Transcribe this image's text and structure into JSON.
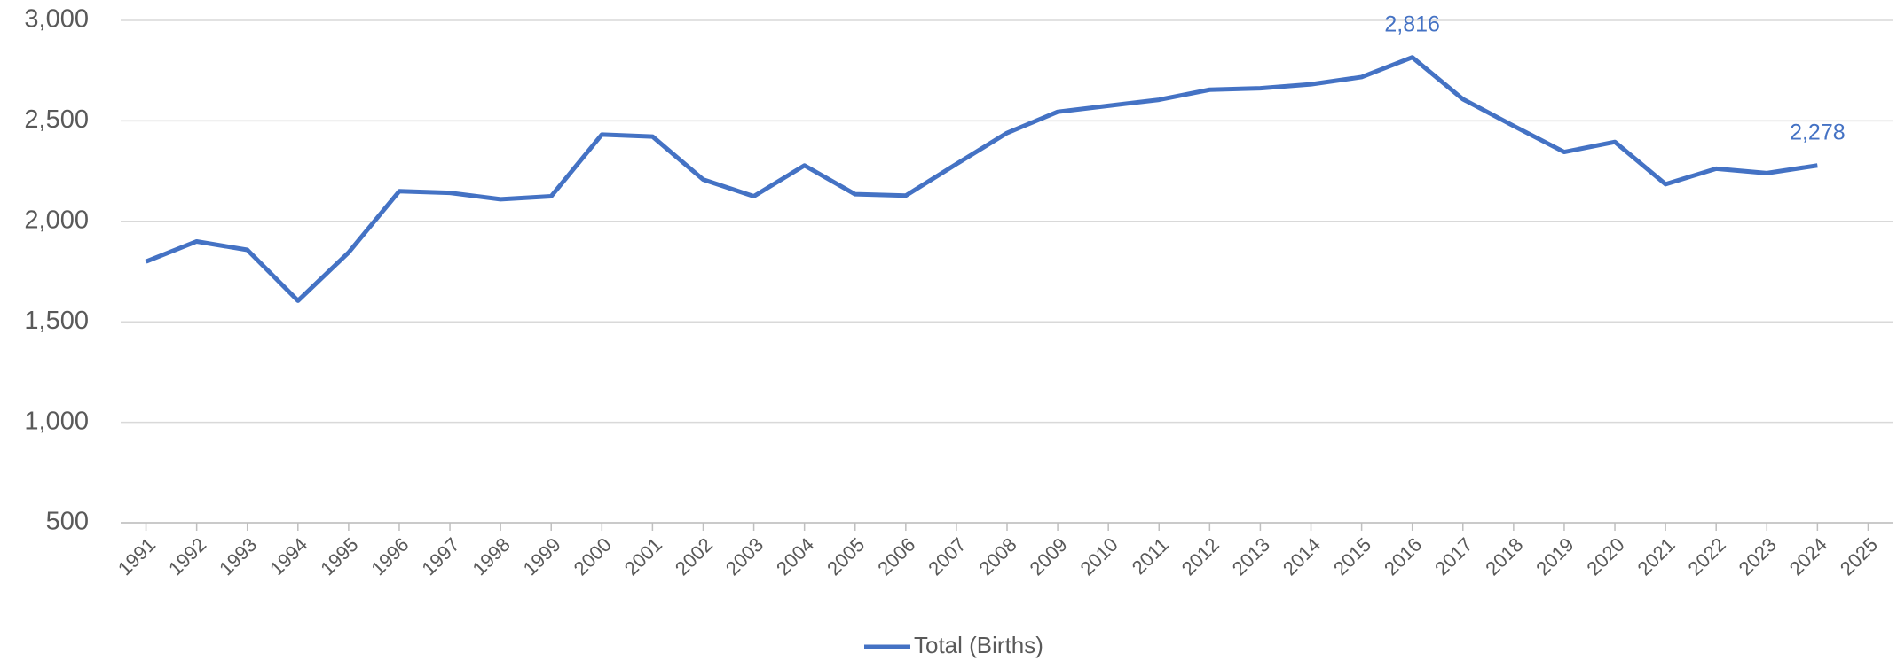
{
  "chart_data": {
    "type": "line",
    "categories": [
      "1991",
      "1992",
      "1993",
      "1994",
      "1995",
      "1996",
      "1997",
      "1998",
      "1999",
      "2000",
      "2001",
      "2002",
      "2003",
      "2004",
      "2005",
      "2006",
      "2007",
      "2008",
      "2009",
      "2010",
      "2011",
      "2012",
      "2013",
      "2014",
      "2015",
      "2016",
      "2017",
      "2018",
      "2019",
      "2020",
      "2021",
      "2022",
      "2023",
      "2024",
      "2025"
    ],
    "series": [
      {
        "name": "Total (Births)",
        "color": "#4472c4",
        "values": [
          1800,
          1900,
          1858,
          1605,
          1845,
          2150,
          2142,
          2110,
          2125,
          2432,
          2422,
          2208,
          2125,
          2278,
          2135,
          2128,
          2285,
          2440,
          2545,
          2575,
          2605,
          2655,
          2662,
          2682,
          2718,
          2816,
          2608,
          2475,
          2345,
          2395,
          2185,
          2262,
          2240,
          2278,
          null
        ],
        "value_labels": [
          null,
          null,
          null,
          null,
          null,
          null,
          null,
          null,
          null,
          null,
          null,
          null,
          null,
          null,
          null,
          null,
          null,
          null,
          null,
          null,
          null,
          null,
          null,
          null,
          null,
          "2,816",
          null,
          null,
          null,
          null,
          null,
          null,
          null,
          "2,278",
          null
        ]
      }
    ],
    "ylim": [
      500,
      3000
    ],
    "yticks": [
      500,
      {
        "value": 1000,
        "label": "1,000"
      },
      {
        "value": 1500,
        "label": "1,500"
      },
      {
        "value": 2000,
        "label": "2,000"
      },
      {
        "value": 2500,
        "label": "2,500"
      },
      {
        "value": 3000,
        "label": "3,000"
      }
    ],
    "grid": true,
    "legend": "bottom"
  }
}
